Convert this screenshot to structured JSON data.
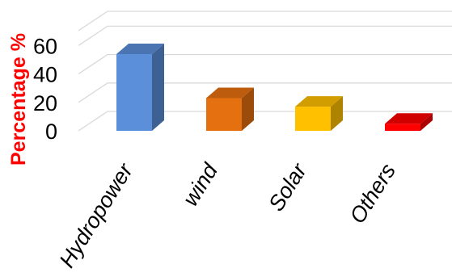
{
  "chart_data": {
    "type": "bar",
    "categories": [
      "Hydropower",
      "wind",
      "Solar",
      "Others"
    ],
    "values": [
      54,
      23,
      17,
      5
    ],
    "ylabel": "Percentage %",
    "yticks": [
      0,
      20,
      40,
      60
    ],
    "ylim": [
      0,
      70
    ],
    "grid": true,
    "style": "3d",
    "colors": {
      "Hydropower": "#5b8fd9",
      "wind": "#e5700f",
      "Solar": "#ffc000",
      "Others": "#ff0000",
      "ylabel": "#ff0000"
    }
  }
}
